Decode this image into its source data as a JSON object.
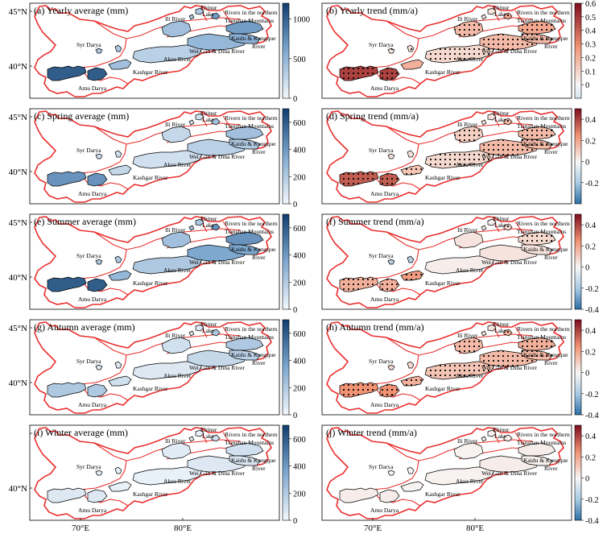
{
  "figure": {
    "panels": [
      {
        "title": "(a) Yearly average (mm)",
        "kind": "average",
        "colorbar": {
          "ticks": [
            "0",
            "500",
            "1000"
          ],
          "range": [
            0,
            1200
          ]
        },
        "values": {
          "amu": 0.85,
          "kashgar": 0.35,
          "syr": 0.3,
          "aksu": 0.25,
          "wei": 0.4,
          "ili": 0.35,
          "ebinur": 0.3,
          "tianshan": 0.55,
          "kaidu": 0.45
        }
      },
      {
        "title": "(b) Yearly trend (mm/a)",
        "kind": "trend",
        "colorbar": {
          "ticks": [
            "0",
            "0.1",
            "0.2",
            "0.3",
            "0.4",
            "0.5",
            "0.6"
          ],
          "range": [
            -0.1,
            0.6
          ]
        },
        "values": {
          "amu": 0.8,
          "kashgar": 0.35,
          "syr": 0.1,
          "aksu": 0.15,
          "wei": 0.3,
          "ili": 0.3,
          "ebinur": 0.1,
          "tianshan": 0.4,
          "kaidu": 0.3
        },
        "stippled": [
          "amu",
          "syr",
          "aksu",
          "wei",
          "ili",
          "tianshan",
          "kaidu"
        ]
      },
      {
        "title": "(c) Spring average (mm)",
        "kind": "average",
        "colorbar": {
          "ticks": [
            "0",
            "200",
            "400",
            "600"
          ],
          "range": [
            0,
            700
          ]
        },
        "values": {
          "amu": 0.6,
          "kashgar": 0.2,
          "syr": 0.15,
          "aksu": 0.15,
          "wei": 0.25,
          "ili": 0.2,
          "ebinur": 0.15,
          "tianshan": 0.35,
          "kaidu": 0.3
        }
      },
      {
        "title": "(d) Spring trend (mm/a)",
        "kind": "trend",
        "colorbar": {
          "ticks": [
            "-0.2",
            "0",
            "0.2",
            "0.4"
          ],
          "range": [
            -0.4,
            0.5
          ]
        },
        "values": {
          "amu": 0.7,
          "kashgar": 0.25,
          "syr": 0.1,
          "aksu": 0.15,
          "wei": 0.3,
          "ili": 0.2,
          "ebinur": 0.1,
          "tianshan": 0.3,
          "kaidu": 0.3
        },
        "stippled": [
          "amu",
          "kashgar",
          "aksu",
          "wei",
          "ili",
          "tianshan",
          "kaidu"
        ]
      },
      {
        "title": "(e) Summer average (mm)",
        "kind": "average",
        "colorbar": {
          "ticks": [
            "0",
            "200",
            "400",
            "600"
          ],
          "range": [
            0,
            700
          ]
        },
        "values": {
          "amu": 0.85,
          "kashgar": 0.4,
          "syr": 0.3,
          "aksu": 0.3,
          "wei": 0.5,
          "ili": 0.35,
          "ebinur": 0.3,
          "tianshan": 0.6,
          "kaidu": 0.5
        }
      },
      {
        "title": "(f) Summer trend (mm/a)",
        "kind": "trend",
        "colorbar": {
          "ticks": [
            "-0.4",
            "-0.2",
            "0",
            "0.2",
            "0.4"
          ],
          "range": [
            -0.4,
            0.5
          ]
        },
        "values": {
          "amu": 0.35,
          "kashgar": 0.45,
          "syr": -0.3,
          "aksu": 0.05,
          "wei": 0.1,
          "ili": 0.1,
          "ebinur": 0.05,
          "tianshan": 0.15,
          "kaidu": 0.1
        },
        "stippled": [
          "amu",
          "kashgar",
          "tianshan"
        ]
      },
      {
        "title": "(g) Autumn average (mm)",
        "kind": "average",
        "colorbar": {
          "ticks": [
            "0",
            "200",
            "400",
            "600"
          ],
          "range": [
            0,
            700
          ]
        },
        "values": {
          "amu": 0.3,
          "kashgar": 0.15,
          "syr": 0.1,
          "aksu": 0.1,
          "wei": 0.2,
          "ili": 0.15,
          "ebinur": 0.1,
          "tianshan": 0.3,
          "kaidu": 0.25
        }
      },
      {
        "title": "(h) Autumn trend (mm/a)",
        "kind": "trend",
        "colorbar": {
          "ticks": [
            "-0.4",
            "-0.2",
            "0",
            "0.2",
            "0.4"
          ],
          "range": [
            -0.4,
            0.5
          ]
        },
        "values": {
          "amu": 0.5,
          "kashgar": 0.35,
          "syr": 0.15,
          "aksu": 0.25,
          "wei": 0.3,
          "ili": 0.3,
          "ebinur": 0.1,
          "tianshan": 0.35,
          "kaidu": 0.3
        },
        "stippled": [
          "amu",
          "kashgar",
          "aksu",
          "wei",
          "ili",
          "tianshan",
          "kaidu"
        ]
      },
      {
        "title": "(i) Winter average (mm)",
        "kind": "average",
        "colorbar": {
          "ticks": [
            "0",
            "200",
            "400",
            "600"
          ],
          "range": [
            0,
            700
          ]
        },
        "values": {
          "amu": 0.1,
          "kashgar": 0.05,
          "syr": 0.05,
          "aksu": 0.05,
          "wei": 0.1,
          "ili": 0.08,
          "ebinur": 0.05,
          "tianshan": 0.15,
          "kaidu": 0.12
        }
      },
      {
        "title": "(j) Winter trend (mm/a)",
        "kind": "trend",
        "colorbar": {
          "ticks": [
            "-0.4",
            "-0.2",
            "0",
            "0.2",
            "0.4"
          ],
          "range": [
            -0.4,
            0.5
          ]
        },
        "values": {
          "amu": 0.05,
          "kashgar": 0.02,
          "syr": 0.0,
          "aksu": 0.03,
          "wei": 0.05,
          "ili": 0.03,
          "ebinur": 0.02,
          "tianshan": 0.05,
          "kaidu": 0.04
        },
        "stippled": []
      }
    ],
    "basin_labels": {
      "ebinur": "Ebinur",
      "lake": "Lake",
      "ili": "Ili River",
      "northern_1": "Rivers in the northern",
      "northern_2": "Tianshan Mountains",
      "kaidu_1": "Kaidu & Kongque",
      "kaidu_2": "River",
      "syr": "Syr Darya",
      "wei": "Wei Gan & Dina River",
      "aksu": "Aksu River",
      "kashgar": "Kashgar River",
      "amu": "Amu Darya"
    },
    "y_ticks": [
      "45°N",
      "40°N"
    ],
    "x_ticks": [
      "70°E",
      "80°E"
    ],
    "colors": {
      "outline": "#e8302e",
      "basin_edge": "#000000",
      "blue_low": "#f4f8fc",
      "blue_high": "#0f3d6e",
      "red_high": "#7e0d1e",
      "neutral": "#f7f7f7",
      "trend_low": "#2c6ea6"
    }
  }
}
